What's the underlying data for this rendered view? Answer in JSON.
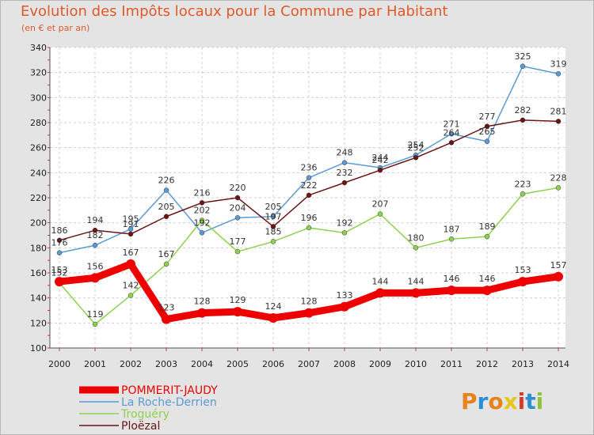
{
  "chart_data": {
    "type": "line",
    "title": "Evolution des Impôts locaux pour la Commune par Habitant",
    "subtitle": "(en € et par an)",
    "x": [
      "2000",
      "2001",
      "2002",
      "2003",
      "2004",
      "2005",
      "2006",
      "2007",
      "2008",
      "2009",
      "2010",
      "2011",
      "2012",
      "2013",
      "2014"
    ],
    "ylim": [
      100,
      340
    ],
    "yticks": [
      100,
      120,
      140,
      160,
      180,
      200,
      220,
      240,
      260,
      280,
      300,
      320,
      340
    ],
    "grid": true,
    "legend_position": "bottom-left",
    "series": [
      {
        "name": "POMMERIT-JAUDY",
        "color": "#ee0000",
        "values": [
          153,
          156,
          167,
          123,
          128,
          129,
          124,
          128,
          133,
          144,
          144,
          146,
          146,
          153,
          157
        ]
      },
      {
        "name": "La Roche-Derrien",
        "color": "#5b9bd5",
        "values": [
          176,
          182,
          195,
          226,
          192,
          204,
          205,
          236,
          248,
          244,
          254,
          271,
          265,
          325,
          319
        ]
      },
      {
        "name": "Troguéry",
        "color": "#8fd14f",
        "values": [
          152,
          119,
          142,
          167,
          202,
          177,
          185,
          196,
          192,
          207,
          180,
          187,
          189,
          223,
          228
        ]
      },
      {
        "name": "Ploëzal",
        "color": "#6b1515",
        "values": [
          186,
          194,
          191,
          205,
          216,
          220,
          197,
          222,
          232,
          242,
          252,
          264,
          277,
          282,
          281
        ]
      }
    ]
  },
  "logo": {
    "text": "Proxiti"
  }
}
